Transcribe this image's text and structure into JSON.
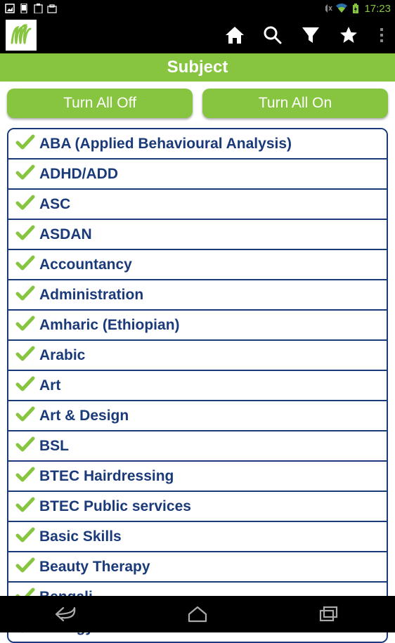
{
  "status": {
    "time": "17:23"
  },
  "header": {
    "title": "Subject"
  },
  "buttons": {
    "off": "Turn All Off",
    "on": "Turn All On"
  },
  "colors": {
    "accent": "#87c540",
    "primary_text": "#1a3a7a",
    "bg_black": "#000000",
    "bg_white": "#ffffff"
  },
  "subjects": [
    {
      "label": "ABA (Applied Behavioural Analysis)",
      "checked": true
    },
    {
      "label": "ADHD/ADD",
      "checked": true
    },
    {
      "label": "ASC",
      "checked": true
    },
    {
      "label": "ASDAN",
      "checked": true
    },
    {
      "label": "Accountancy",
      "checked": true
    },
    {
      "label": "Administration",
      "checked": true
    },
    {
      "label": "Amharic (Ethiopian)",
      "checked": true
    },
    {
      "label": "Arabic",
      "checked": true
    },
    {
      "label": "Art",
      "checked": true
    },
    {
      "label": "Art & Design",
      "checked": true
    },
    {
      "label": "BSL",
      "checked": true
    },
    {
      "label": "BTEC Hairdressing",
      "checked": true
    },
    {
      "label": "BTEC Public services",
      "checked": true
    },
    {
      "label": "Basic Skills",
      "checked": true
    },
    {
      "label": "Beauty Therapy",
      "checked": true
    },
    {
      "label": "Bengali",
      "checked": true
    },
    {
      "label": "Biology",
      "checked": true
    }
  ]
}
